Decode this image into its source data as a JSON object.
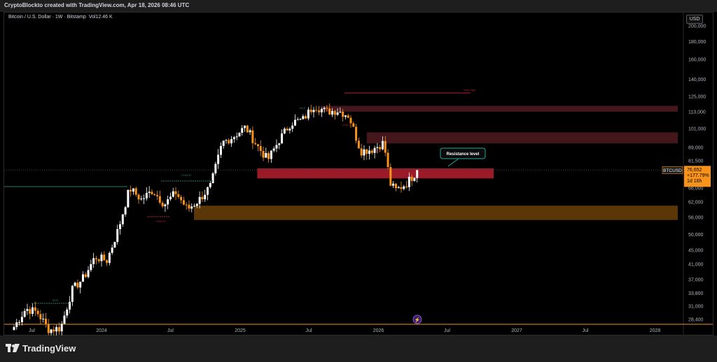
{
  "header": {
    "attribution": "CryptoBlockto created with TradingView.com, Apr 18, 2026 08:46 UTC"
  },
  "legend": {
    "symbol_line": "Bitcoin / U.S. Dollar · 1W · Bitstamp",
    "volume_label": "Vol",
    "volume_value": "12.46 K"
  },
  "price_axis": {
    "currency_button": "USD"
  },
  "last_price_tag": {
    "symbol": "BTCUSD",
    "price": "76,652",
    "change": "+177.79%",
    "countdown": "1d 16h",
    "color": "#f7931a"
  },
  "annotations": {
    "resistance_label": "Resistance level",
    "new_high_label": "New High",
    "choch_1": "CHoCH",
    "choch_2": "CHoCH",
    "choch_3": "CHoCH",
    "bos_1": "BOS",
    "bos_2": "BOS",
    "bos_3": "BOS"
  },
  "footer": {
    "brand": "TradingView"
  },
  "colors": {
    "up_candle": "#ffffff",
    "down_candle": "#f7931a",
    "resistance_zone": "#b5202e",
    "support_zone": "#7a4a0a",
    "upper_zone": "#4a1a1f",
    "background": "#000000"
  },
  "chart_data": {
    "type": "candlestick",
    "title": "Bitcoin / U.S. Dollar · 1W · Bitstamp",
    "y_scale": "log",
    "y_ticks": [
      28400,
      31000,
      33800,
      37000,
      41000,
      45000,
      50000,
      56000,
      62000,
      68000,
      75000,
      81500,
      89000,
      101000,
      113000,
      125000,
      140000,
      160000,
      180000,
      200000
    ],
    "y_tick_labels": [
      "28,400",
      "31,000",
      "33,800",
      "37,000",
      "41,000",
      "45,000",
      "50,000",
      "56,000",
      "62,000",
      "68,000",
      "75,000",
      "81,500",
      "89,000",
      "101,000",
      "113,000",
      "125,000",
      "140,000",
      "160,000",
      "180,000",
      "200,000"
    ],
    "x_tick_labels": [
      "Jul",
      "2024",
      "Jul",
      "2025",
      "Jul",
      "2026",
      "Jul",
      "2027",
      "Jul",
      "2028"
    ],
    "x_tick_dates": [
      "2023-07-01",
      "2024-01-01",
      "2024-07-01",
      "2025-01-01",
      "2025-07-01",
      "2026-01-01",
      "2026-07-01",
      "2027-01-01",
      "2027-07-01",
      "2028-01-01"
    ],
    "zones": [
      {
        "name": "upper-supply-1",
        "low": 113000,
        "high": 117500,
        "from": "2025-08-01",
        "to": "2028-03-01"
      },
      {
        "name": "upper-supply-2",
        "low": 91500,
        "high": 98500,
        "from": "2025-12-01",
        "to": "2028-03-01"
      },
      {
        "name": "resistance",
        "low": 72500,
        "high": 77500,
        "from": "2025-02-15",
        "to": "2026-11-01"
      },
      {
        "name": "support",
        "low": 55000,
        "high": 60500,
        "from": "2024-09-01",
        "to": "2028-03-01"
      }
    ],
    "last_price": 76652,
    "weekly_closes_approx": [
      [
        "2023-05-15",
        27000
      ],
      [
        "2023-06-15",
        30500
      ],
      [
        "2023-07-15",
        29800
      ],
      [
        "2023-08-15",
        26500
      ],
      [
        "2023-09-15",
        26800
      ],
      [
        "2023-10-15",
        34500
      ],
      [
        "2023-11-15",
        37500
      ],
      [
        "2023-12-15",
        43000
      ],
      [
        "2024-01-15",
        42000
      ],
      [
        "2024-02-15",
        52000
      ],
      [
        "2024-03-15",
        68000
      ],
      [
        "2024-04-15",
        63000
      ],
      [
        "2024-05-15",
        67000
      ],
      [
        "2024-06-15",
        61000
      ],
      [
        "2024-07-15",
        66000
      ],
      [
        "2024-08-15",
        59000
      ],
      [
        "2024-09-15",
        63000
      ],
      [
        "2024-10-15",
        69000
      ],
      [
        "2024-11-15",
        92000
      ],
      [
        "2024-12-15",
        96000
      ],
      [
        "2025-01-15",
        102000
      ],
      [
        "2025-02-15",
        90000
      ],
      [
        "2025-03-15",
        82000
      ],
      [
        "2025-04-15",
        94000
      ],
      [
        "2025-05-15",
        105000
      ],
      [
        "2025-06-15",
        107000
      ],
      [
        "2025-07-15",
        118000
      ],
      [
        "2025-08-15",
        113000
      ],
      [
        "2025-09-15",
        114000
      ],
      [
        "2025-10-15",
        110000
      ],
      [
        "2025-11-15",
        87000
      ],
      [
        "2025-12-15",
        88000
      ],
      [
        "2026-01-15",
        92000
      ],
      [
        "2026-02-01",
        70000
      ],
      [
        "2026-02-15",
        67000
      ],
      [
        "2026-03-15",
        70000
      ],
      [
        "2026-04-15",
        76652
      ]
    ]
  }
}
